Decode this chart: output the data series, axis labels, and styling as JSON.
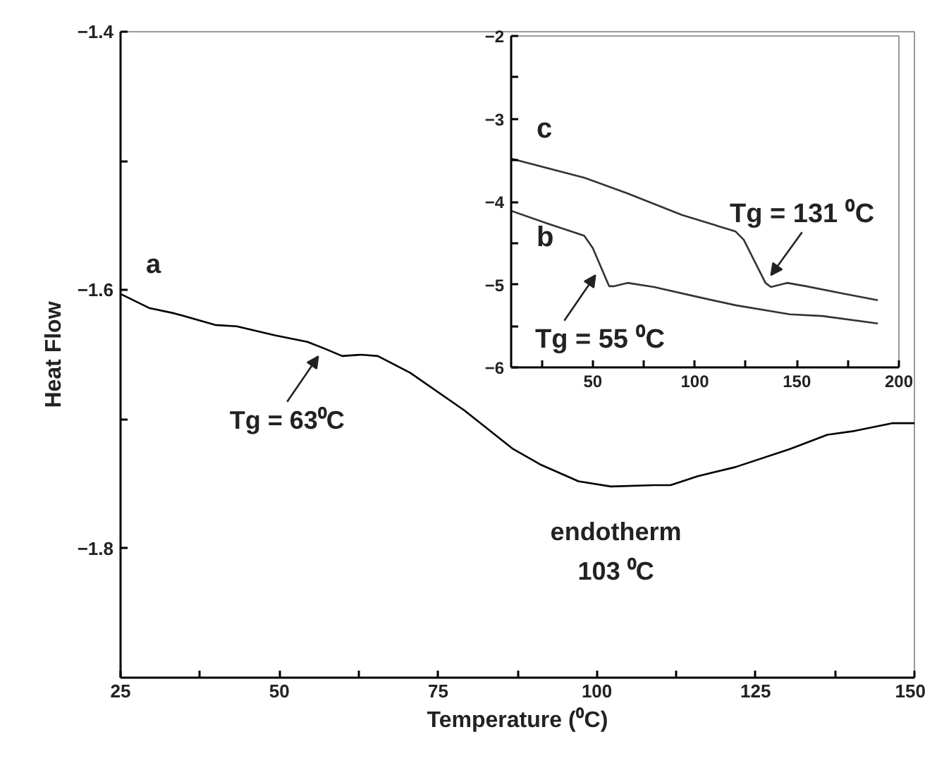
{
  "chart_data": [
    {
      "type": "line",
      "xlabel": "Temperature (⁰C)",
      "ylabel": "Heat Flow",
      "xlim": [
        25,
        150
      ],
      "ylim": [
        -1.9,
        -1.4
      ],
      "xticks": [
        25,
        {
          "value": 37.5,
          "label": null
        },
        50,
        {
          "value": 62.5,
          "label": null
        },
        75,
        {
          "value": 87.5,
          "label": null
        },
        100,
        {
          "value": 112.5,
          "label": null
        },
        125,
        {
          "value": 137.5,
          "label": null
        },
        150
      ],
      "yticks": [
        -1.8,
        {
          "value": -1.7,
          "label": null
        },
        -1.6,
        {
          "value": -1.5,
          "label": null
        },
        -1.4
      ],
      "series": [
        {
          "name": "a",
          "color": "#000000",
          "x": [
            25,
            29.6,
            33.5,
            39.9,
            43.3,
            49.3,
            54.4,
            57,
            59.9,
            62.9,
            65.5,
            70.6,
            79.1,
            86.8,
            91.1,
            97.1,
            102.2,
            109,
            111.6,
            115.9,
            121.8,
            130.4,
            136.3,
            140.6,
            146.6,
            150
          ],
          "values": [
            -1.603,
            -1.614,
            -1.618,
            -1.627,
            -1.628,
            -1.635,
            -1.64,
            -1.645,
            -1.651,
            -1.65,
            -1.651,
            -1.664,
            -1.693,
            -1.723,
            -1.735,
            -1.748,
            -1.752,
            -1.751,
            -1.751,
            -1.744,
            -1.737,
            -1.723,
            -1.712,
            -1.709,
            -1.703,
            -1.703
          ]
        }
      ],
      "annotations": [
        {
          "text": "Tg = 63⁰C",
          "x": 57,
          "y": -1.645
        },
        {
          "text": "endotherm\n103 ⁰C",
          "x": 103,
          "y": -1.752
        }
      ]
    },
    {
      "type": "line",
      "xlim": [
        10,
        200
      ],
      "ylim": [
        -6,
        -2
      ],
      "xticks": [
        {
          "value": 25,
          "label": null
        },
        50,
        {
          "value": 75,
          "label": null
        },
        100,
        {
          "value": 125,
          "label": null
        },
        150,
        {
          "value": 175,
          "label": null
        },
        200
      ],
      "yticks": [
        -6,
        {
          "value": -5.5,
          "label": null
        },
        -5,
        {
          "value": -4.5,
          "label": null
        },
        -4,
        {
          "value": -3.5,
          "label": null
        },
        -3,
        {
          "value": -2.5,
          "label": null
        },
        -2
      ],
      "series": [
        {
          "name": "c",
          "color": "#333333",
          "x": [
            10,
            45.8,
            67,
            93.6,
            120,
            124,
            129.3,
            134.6,
            137.3,
            145.2,
            154.5,
            173,
            189.7
          ],
          "values": [
            -3.48,
            -3.71,
            -3.9,
            -4.16,
            -4.36,
            -4.46,
            -4.72,
            -4.98,
            -5.03,
            -4.98,
            -5.02,
            -5.11,
            -5.19
          ]
        },
        {
          "name": "b",
          "color": "#333333",
          "x": [
            10,
            27.3,
            45.8,
            50,
            54,
            58,
            60.6,
            67,
            80,
            101.5,
            120,
            146.6,
            162.5,
            189.7
          ],
          "values": [
            -4.11,
            -4.26,
            -4.41,
            -4.56,
            -4.79,
            -5.02,
            -5.02,
            -4.98,
            -5.03,
            -5.15,
            -5.25,
            -5.36,
            -5.38,
            -5.47
          ]
        }
      ],
      "annotations": [
        {
          "text": "Tg = 131 ⁰C",
          "x": 134.6,
          "y": -4.98
        },
        {
          "text": "Tg = 55 ⁰C",
          "x": 54,
          "y": -4.79
        }
      ]
    }
  ]
}
